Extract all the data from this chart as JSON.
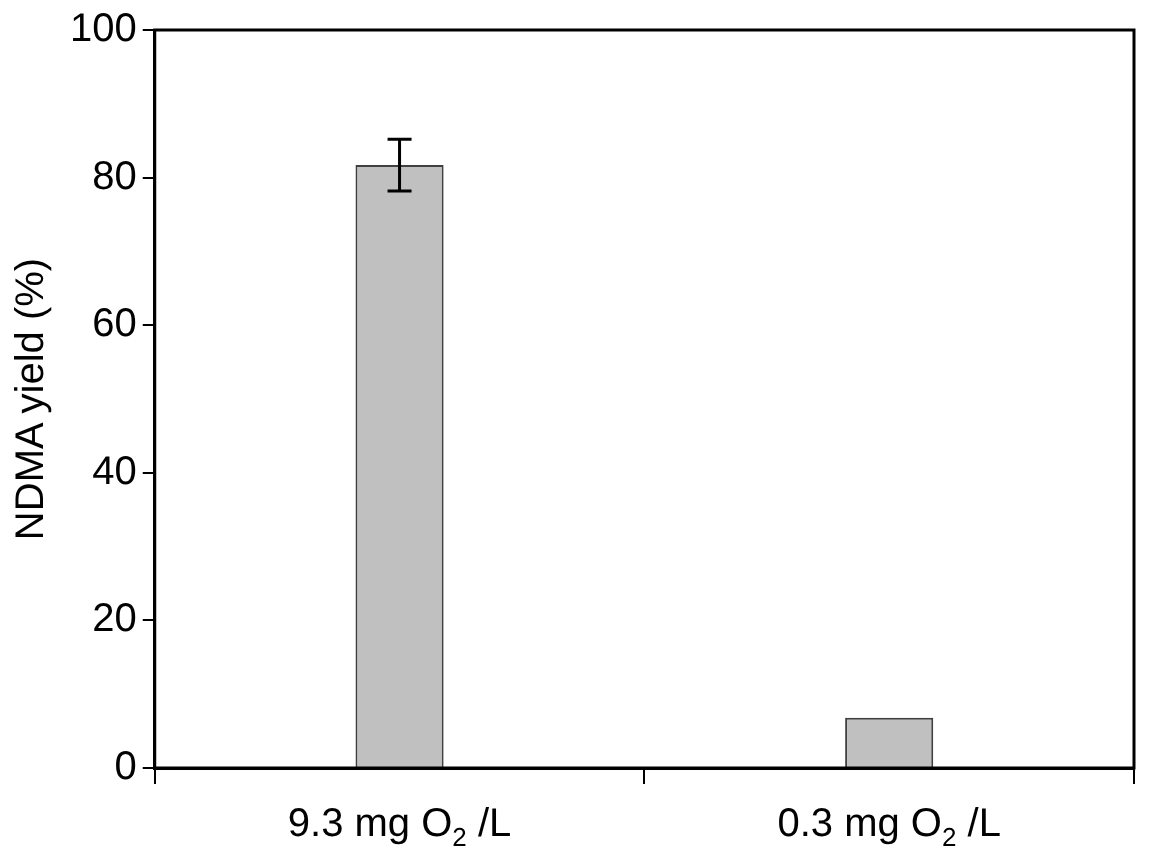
{
  "chart_data": {
    "type": "bar",
    "ylabel": "NDMA yield (%)",
    "categories": [
      "9.3 mg O$_{2}$ /L",
      "0.3 mg O$_{2}$ /L"
    ],
    "values": [
      81.7,
      6.8
    ],
    "errors": [
      3.5,
      null
    ],
    "color": "#c0c0c0",
    "ylim": [
      0,
      100
    ],
    "yticks": [
      0,
      20,
      40,
      60,
      80,
      100
    ],
    "grid": false,
    "legend": false
  }
}
